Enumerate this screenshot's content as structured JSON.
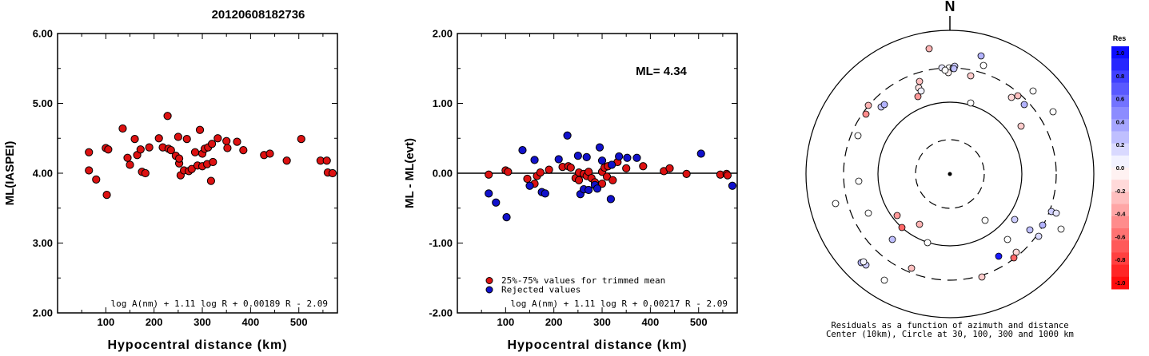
{
  "title": "20120608182736",
  "chart_data": [
    {
      "type": "scatter",
      "title": "",
      "xlabel": "Hypocentral distance (km)",
      "ylabel": "ML(IASPEI)",
      "xlim": [
        0,
        580
      ],
      "ylim": [
        2.0,
        6.0
      ],
      "x_ticks": [
        100,
        200,
        300,
        400,
        500
      ],
      "y_ticks": [
        "2.00",
        "3.00",
        "4.00",
        "5.00",
        "6.00"
      ],
      "annotation": "log A(nm) + 1.11 log R + 0.00189 R - 2.09",
      "series": [
        {
          "color": "#dd1111",
          "points": [
            [
              65,
              4.3
            ],
            [
              65,
              4.04
            ],
            [
              80,
              3.91
            ],
            [
              100,
              4.36
            ],
            [
              102,
              3.69
            ],
            [
              105,
              4.34
            ],
            [
              135,
              4.64
            ],
            [
              145,
              4.22
            ],
            [
              150,
              4.12
            ],
            [
              160,
              4.49
            ],
            [
              165,
              4.26
            ],
            [
              172,
              4.34
            ],
            [
              175,
              4.02
            ],
            [
              182,
              4.0
            ],
            [
              190,
              4.37
            ],
            [
              210,
              4.5
            ],
            [
              218,
              4.37
            ],
            [
              228,
              4.82
            ],
            [
              230,
              4.35
            ],
            [
              235,
              4.33
            ],
            [
              245,
              4.25
            ],
            [
              250,
              4.52
            ],
            [
              252,
              4.14
            ],
            [
              252,
              4.21
            ],
            [
              255,
              3.97
            ],
            [
              262,
              4.04
            ],
            [
              268,
              4.49
            ],
            [
              272,
              4.03
            ],
            [
              278,
              4.06
            ],
            [
              285,
              4.3
            ],
            [
              290,
              4.11
            ],
            [
              295,
              4.62
            ],
            [
              300,
              4.28
            ],
            [
              300,
              4.1
            ],
            [
              305,
              4.35
            ],
            [
              310,
              4.13
            ],
            [
              312,
              4.37
            ],
            [
              318,
              3.89
            ],
            [
              320,
              4.42
            ],
            [
              322,
              4.16
            ],
            [
              332,
              4.5
            ],
            [
              350,
              4.46
            ],
            [
              352,
              4.36
            ],
            [
              372,
              4.45
            ],
            [
              385,
              4.33
            ],
            [
              428,
              4.26
            ],
            [
              440,
              4.28
            ],
            [
              475,
              4.18
            ],
            [
              505,
              4.49
            ],
            [
              545,
              4.18
            ],
            [
              558,
              4.18
            ],
            [
              560,
              4.01
            ],
            [
              570,
              4.0
            ]
          ]
        }
      ]
    },
    {
      "type": "scatter",
      "title": "",
      "xlabel": "Hypocentral distance (km)",
      "ylabel": "ML - ML(evt)",
      "xlim": [
        0,
        580
      ],
      "ylim": [
        -2.0,
        2.0
      ],
      "x_ticks": [
        100,
        200,
        300,
        400,
        500
      ],
      "y_ticks": [
        "-2.00",
        "-1.00",
        "0.00",
        "1.00",
        "2.00"
      ],
      "ml_label": "ML=  4.34",
      "annotation": "log A(nm) + 1.11 log R + 0.00217 R - 2.09",
      "series": [
        {
          "name": "25%-75% values for trimmed mean",
          "color": "#dd1111",
          "points": [
            [
              65,
              -0.02
            ],
            [
              100,
              0.04
            ],
            [
              105,
              0.02
            ],
            [
              145,
              -0.08
            ],
            [
              160,
              -0.15
            ],
            [
              165,
              -0.04
            ],
            [
              172,
              0.01
            ],
            [
              190,
              0.05
            ],
            [
              218,
              0.09
            ],
            [
              230,
              0.1
            ],
            [
              235,
              0.08
            ],
            [
              245,
              -0.07
            ],
            [
              252,
              -0.1
            ],
            [
              252,
              0.01
            ],
            [
              262,
              -0.01
            ],
            [
              268,
              -0.04
            ],
            [
              272,
              0.02
            ],
            [
              278,
              -0.07
            ],
            [
              285,
              -0.13
            ],
            [
              300,
              -0.15
            ],
            [
              300,
              0.02
            ],
            [
              305,
              0.08
            ],
            [
              310,
              -0.05
            ],
            [
              312,
              0.1
            ],
            [
              322,
              -0.1
            ],
            [
              332,
              0.16
            ],
            [
              350,
              0.07
            ],
            [
              385,
              0.1
            ],
            [
              428,
              0.03
            ],
            [
              440,
              0.07
            ],
            [
              475,
              -0.01
            ],
            [
              545,
              -0.02
            ],
            [
              558,
              -0.01
            ],
            [
              560,
              -0.03
            ]
          ]
        },
        {
          "name": "Rejected values",
          "color": "#1111cc",
          "points": [
            [
              65,
              -0.29
            ],
            [
              80,
              -0.42
            ],
            [
              102,
              -0.63
            ],
            [
              135,
              0.33
            ],
            [
              150,
              -0.18
            ],
            [
              160,
              0.19
            ],
            [
              175,
              -0.27
            ],
            [
              182,
              -0.29
            ],
            [
              210,
              0.2
            ],
            [
              228,
              0.54
            ],
            [
              250,
              0.25
            ],
            [
              255,
              -0.3
            ],
            [
              262,
              -0.23
            ],
            [
              268,
              0.23
            ],
            [
              272,
              -0.24
            ],
            [
              285,
              -0.17
            ],
            [
              290,
              -0.22
            ],
            [
              295,
              0.37
            ],
            [
              300,
              0.18
            ],
            [
              318,
              -0.37
            ],
            [
              320,
              0.12
            ],
            [
              335,
              0.24
            ],
            [
              352,
              0.22
            ],
            [
              372,
              0.22
            ],
            [
              505,
              0.28
            ],
            [
              570,
              -0.18
            ]
          ]
        }
      ]
    }
  ],
  "polar": {
    "north_label": "N",
    "caption_line1": "Residuals as a function of azimuth and distance",
    "caption_line2": "Center (10km), Circle at 30, 100, 300 and 1000 km"
  },
  "colorbar": {
    "title": "Res",
    "labels": [
      "1.0",
      "0.8",
      "0.6",
      "0.4",
      "0.2",
      "0.0",
      "-0.2",
      "-0.4",
      "-0.6",
      "-0.8",
      "-1.0"
    ]
  }
}
